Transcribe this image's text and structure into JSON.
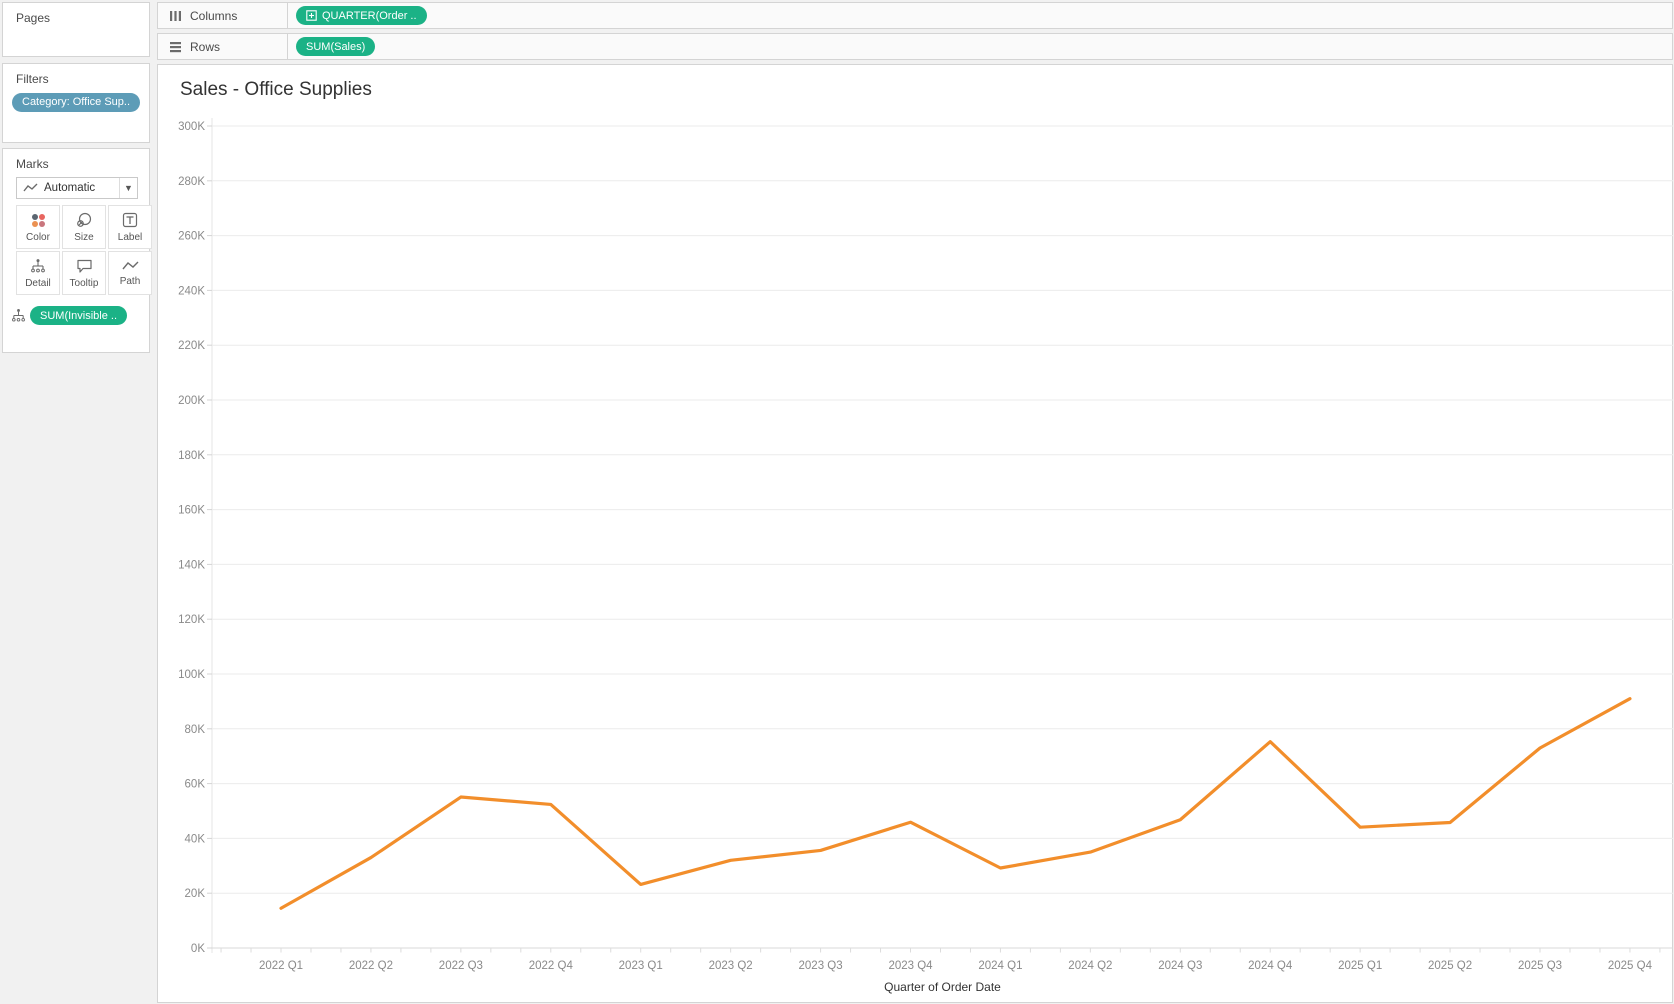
{
  "accent_colors": {
    "pill_green": "#1bb286",
    "pill_blue": "#5d9cb7",
    "line_orange": "#f28e2b"
  },
  "pages": {
    "label": "Pages"
  },
  "filters": {
    "label": "Filters",
    "pill": "Category: Office Sup.."
  },
  "marks": {
    "label": "Marks",
    "mark_type": "Automatic",
    "buttons": [
      {
        "label": "Color"
      },
      {
        "label": "Size"
      },
      {
        "label": "Label"
      },
      {
        "label": "Detail"
      },
      {
        "label": "Tooltip"
      },
      {
        "label": "Path"
      }
    ],
    "pill": "SUM(Invisible .."
  },
  "shelves": {
    "columns": {
      "label": "Columns",
      "pill": "QUARTER(Order .."
    },
    "rows": {
      "label": "Rows",
      "pill": "SUM(Sales)"
    }
  },
  "chart_data": {
    "type": "line",
    "title": "Sales - Office Supplies",
    "xlabel": "Quarter of Order Date",
    "ylabel": "",
    "categories": [
      "2022 Q1",
      "2022 Q2",
      "2022 Q3",
      "2022 Q4",
      "2023 Q1",
      "2023 Q2",
      "2023 Q3",
      "2023 Q4",
      "2024 Q1",
      "2024 Q2",
      "2024 Q3",
      "2024 Q4",
      "2025 Q1",
      "2025 Q2",
      "2025 Q3",
      "2025 Q4"
    ],
    "values": [
      14500,
      33000,
      55100,
      52400,
      23200,
      32000,
      35600,
      45900,
      29200,
      35000,
      46800,
      75300,
      44100,
      45800,
      73000,
      91000
    ],
    "ylim": [
      0,
      300000
    ],
    "ytick_step": 20000,
    "ytick_labels": [
      "0K",
      "20K",
      "40K",
      "60K",
      "80K",
      "100K",
      "120K",
      "140K",
      "160K",
      "180K",
      "200K",
      "220K",
      "240K",
      "260K",
      "280K",
      "300K"
    ],
    "grid": "horizontal",
    "legend": "none",
    "line_color": "#f28e2b"
  }
}
